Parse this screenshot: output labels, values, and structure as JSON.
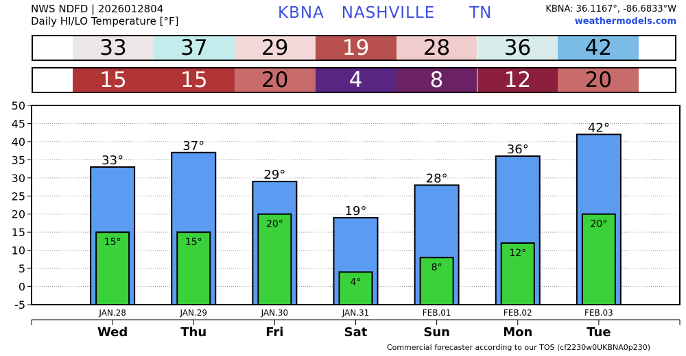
{
  "header": {
    "line1": "NWS NDFD | 2026012804",
    "line2": "Daily HI/LO Temperature [°F]",
    "station": "KBNA   NASHVILLE      TN",
    "coords": "KBNA: 36.1167°, -86.6833°W",
    "site": "weathermodels.com"
  },
  "strips": {
    "hi": [
      {
        "text": "33",
        "bg": "#ede6e6",
        "fg": "#000000"
      },
      {
        "text": "37",
        "bg": "#c3ecec",
        "fg": "#000000"
      },
      {
        "text": "29",
        "bg": "#f5d9da",
        "fg": "#000000"
      },
      {
        "text": "19",
        "bg": "#b85050",
        "fg": "#ffffff"
      },
      {
        "text": "28",
        "bg": "#f1cccc",
        "fg": "#000000"
      },
      {
        "text": "36",
        "bg": "#d6ebea",
        "fg": "#000000"
      },
      {
        "text": "42",
        "bg": "#7bbce6",
        "fg": "#000000"
      }
    ],
    "lo": [
      {
        "text": "15",
        "bg": "#b23535",
        "fg": "#ffffff"
      },
      {
        "text": "15",
        "bg": "#b23535",
        "fg": "#ffffff"
      },
      {
        "text": "20",
        "bg": "#c86b6b",
        "fg": "#000000"
      },
      {
        "text": "4",
        "bg": "#5a2683",
        "fg": "#ffffff"
      },
      {
        "text": "8",
        "bg": "#6b2265",
        "fg": "#ffffff"
      },
      {
        "text": "12",
        "bg": "#8c1f3d",
        "fg": "#ffffff"
      },
      {
        "text": "20",
        "bg": "#c86b6b",
        "fg": "#000000"
      }
    ]
  },
  "chart_data": {
    "type": "bar",
    "categories": [
      "JAN.28",
      "JAN.29",
      "JAN.30",
      "JAN.31",
      "FEB.01",
      "FEB.02",
      "FEB.03"
    ],
    "days": [
      "Wed",
      "Thu",
      "Fri",
      "Sat",
      "Sun",
      "Mon",
      "Tue"
    ],
    "series": [
      {
        "values": [
          33,
          37,
          29,
          19,
          28,
          36,
          42
        ],
        "labels": [
          "33°",
          "37°",
          "29°",
          "19°",
          "28°",
          "36°",
          "42°"
        ],
        "color": "#5b9cf2"
      },
      {
        "values": [
          15,
          15,
          20,
          4,
          8,
          12,
          20
        ],
        "labels": [
          "15°",
          "15°",
          "20°",
          "4°",
          "8°",
          "12°",
          "20°"
        ],
        "color": "#3ad13a"
      }
    ],
    "ylim": [
      -5,
      50
    ],
    "yticks": [
      -5,
      0,
      5,
      10,
      15,
      20,
      25,
      30,
      35,
      40,
      45,
      50
    ],
    "grid": true,
    "xlabel": "",
    "ylabel": ""
  },
  "footer": "Commercial forecaster according to our TOS (cf2230w0UKBNA0p230)"
}
